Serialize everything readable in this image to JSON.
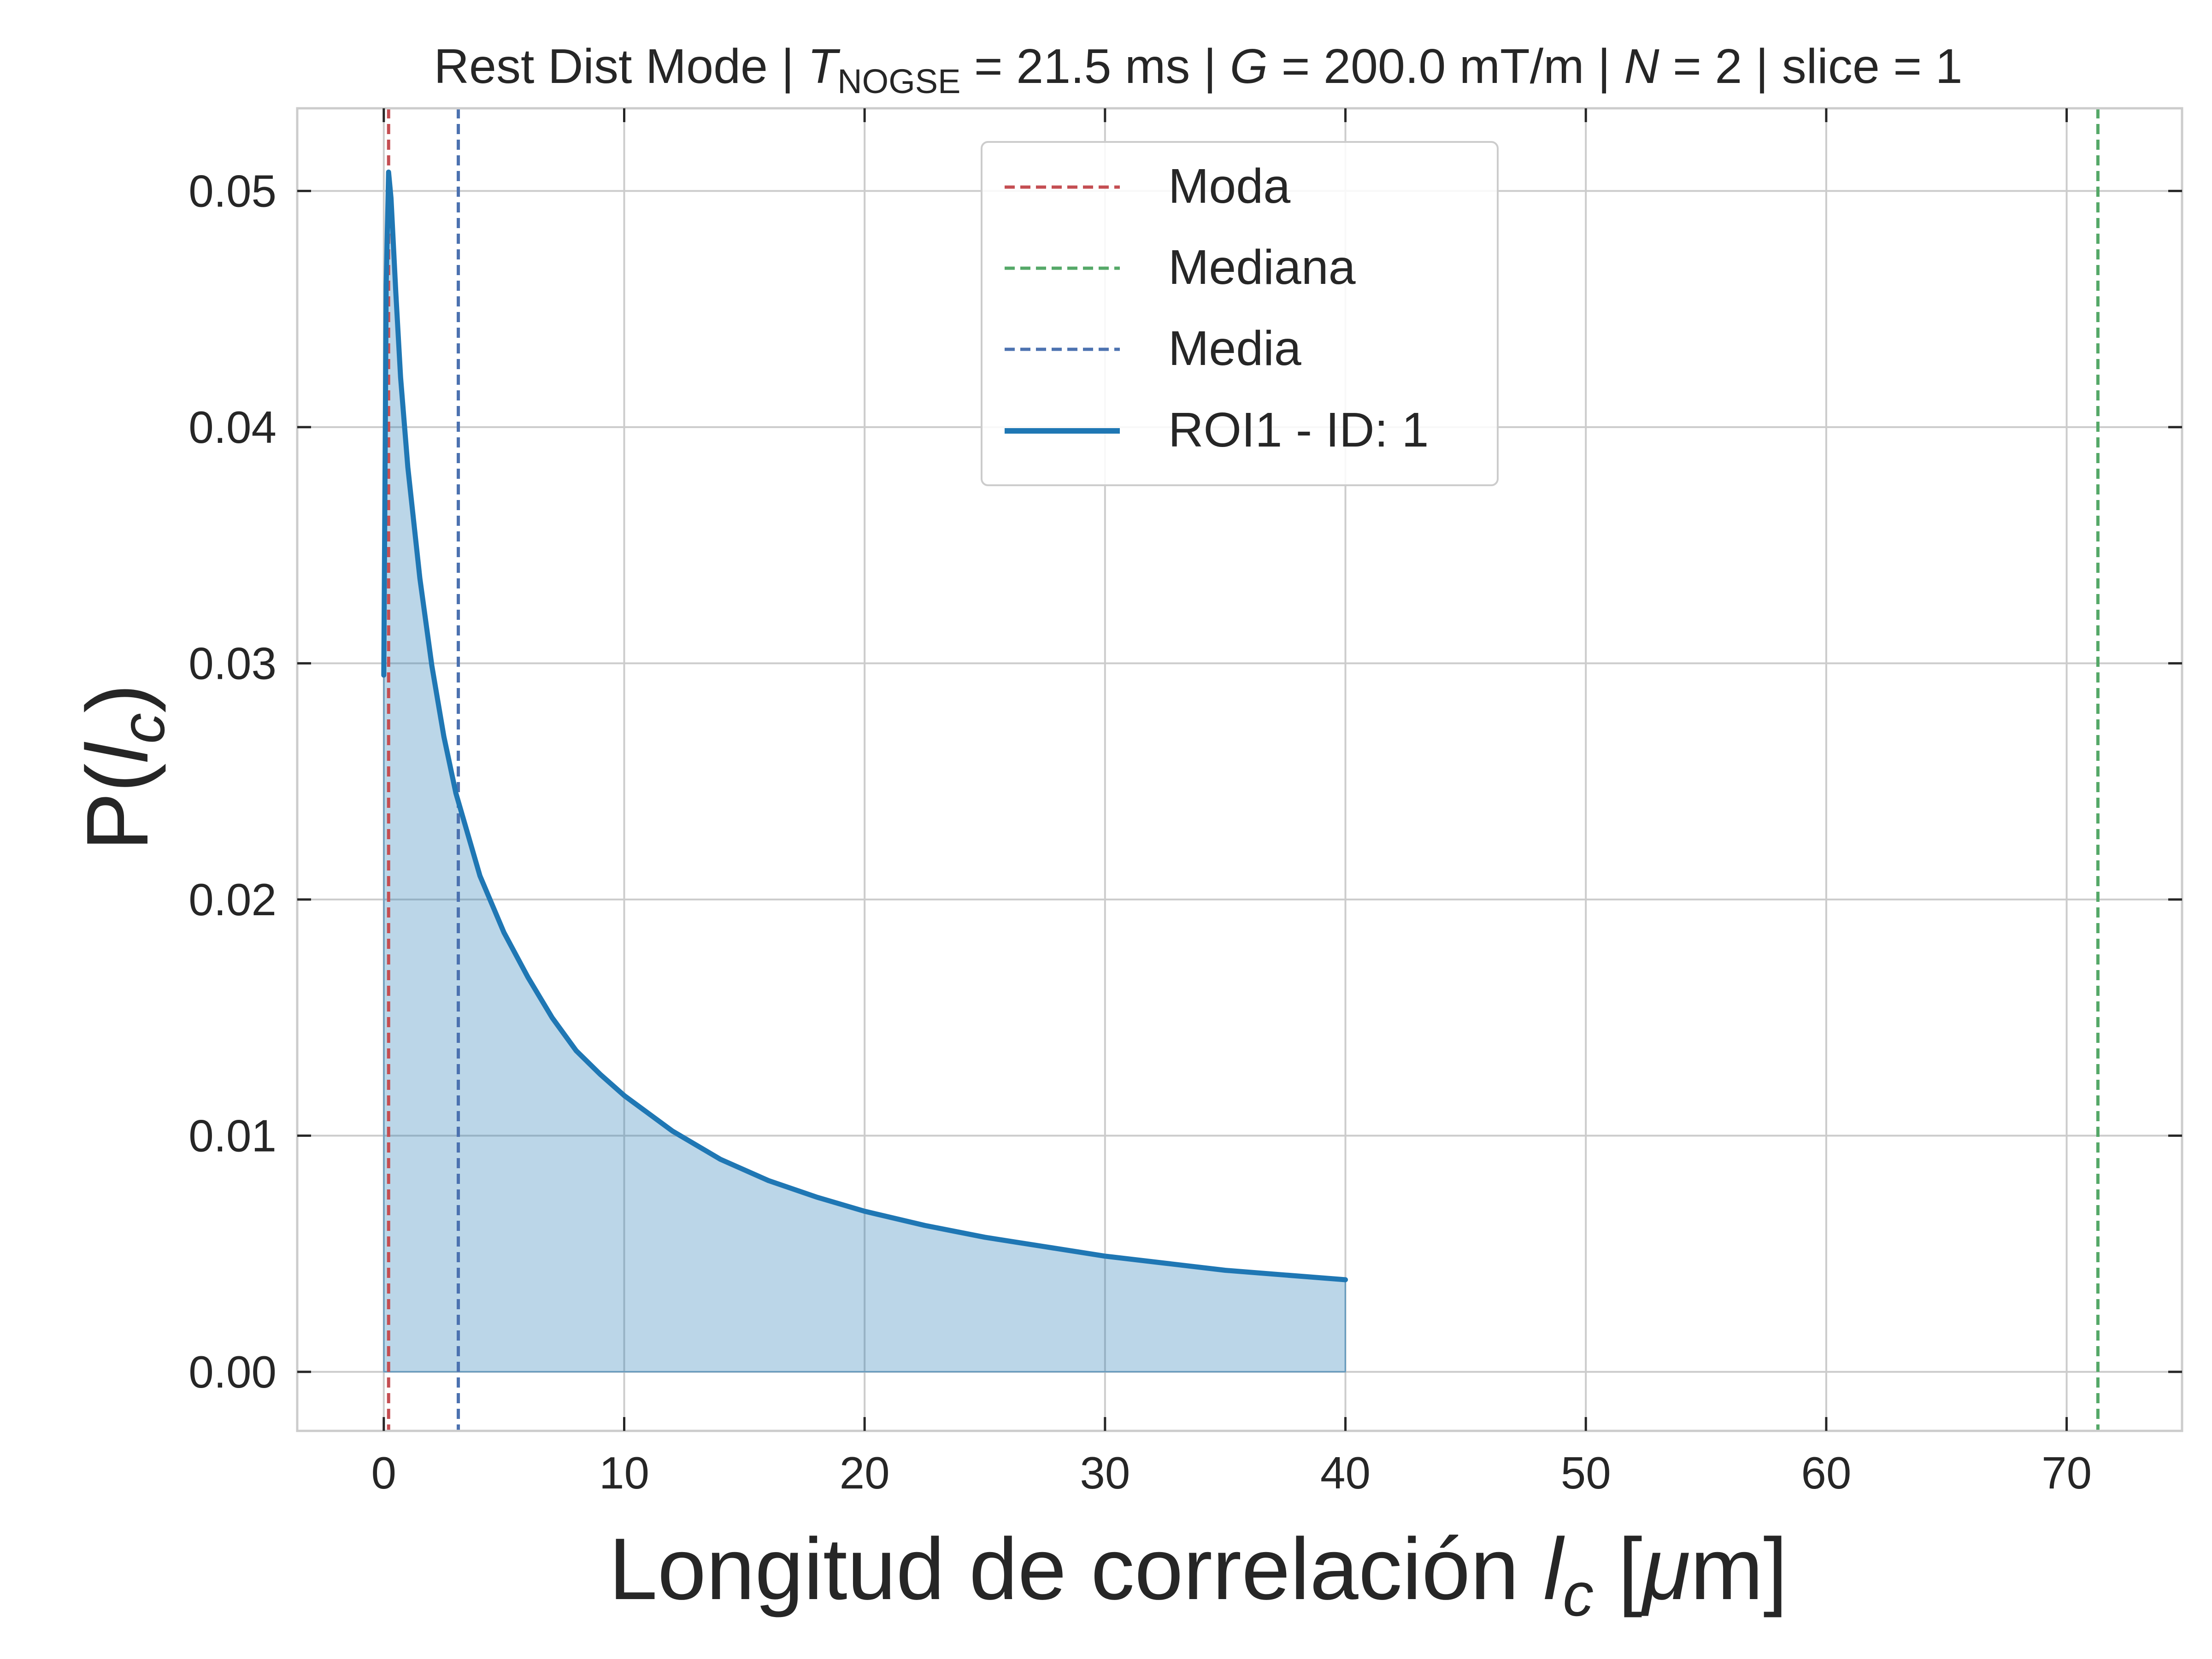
{
  "chart_data": {
    "type": "line",
    "title": {
      "prefix": "Rest Dist Mode | ",
      "t_symbol": "T",
      "t_subscript": "NOGSE",
      "t_value": " = 21.5 ms | ",
      "g_symbol": "G",
      "g_value": " = 200.0 mT/m | ",
      "n_symbol": "N",
      "n_value": " = 2 | slice = 1"
    },
    "xlabel": {
      "text": "Longitud de correlación ",
      "var": "l",
      "var_sub": "c",
      "unit_open": " [",
      "unit_mu": "μ",
      "unit_rest": "m]"
    },
    "ylabel": {
      "text": "P(",
      "var": "l",
      "var_sub": "c",
      "close": ")"
    },
    "xlim": [
      -3.6,
      74.8
    ],
    "ylim": [
      -0.0025,
      0.0535
    ],
    "xticks": [
      0,
      10,
      20,
      30,
      40,
      50,
      60,
      70
    ],
    "xtick_labels": [
      "0",
      "10",
      "20",
      "30",
      "40",
      "50",
      "60",
      "70"
    ],
    "yticks": [
      0.0,
      0.01,
      0.02,
      0.03,
      0.04,
      0.05
    ],
    "ytick_labels": [
      "0.00",
      "0.01",
      "0.02",
      "0.03",
      "0.04",
      "0.05"
    ],
    "grid": true,
    "legend_position": "top-center",
    "series": [
      {
        "name": "ROI1 - ID: 1",
        "color": "#1f77b4",
        "fill_color": "#1f77b4",
        "fill_opacity": 0.3,
        "x": [
          0.0,
          0.1,
          0.2,
          0.3,
          0.5,
          0.7,
          1.0,
          1.5,
          2.0,
          2.5,
          3.0,
          4.0,
          5.0,
          6.0,
          7.0,
          8.0,
          9.0,
          10.0,
          12.0,
          14.0,
          16.0,
          18.0,
          20.0,
          22.5,
          25.0,
          27.5,
          30.0,
          32.5,
          35.0,
          37.5,
          40.0
        ],
        "y": [
          0.0295,
          0.046,
          0.0508,
          0.0497,
          0.0457,
          0.0421,
          0.0383,
          0.0336,
          0.0299,
          0.0269,
          0.0245,
          0.021,
          0.0186,
          0.0167,
          0.015,
          0.0136,
          0.0126,
          0.0117,
          0.0102,
          0.009,
          0.0081,
          0.0074,
          0.0068,
          0.0062,
          0.0057,
          0.0053,
          0.0049,
          0.0046,
          0.0043,
          0.0041,
          0.0039
        ]
      }
    ],
    "vlines": [
      {
        "name": "Moda",
        "x": 0.2,
        "color": "#c44e52"
      },
      {
        "name": "Mediana",
        "x": 71.3,
        "color": "#55a868"
      },
      {
        "name": "Media",
        "x": 3.1,
        "color": "#4c72b0"
      }
    ],
    "legend": [
      {
        "label": "Moda",
        "color": "#c44e52",
        "style": "dashed"
      },
      {
        "label": "Mediana",
        "color": "#55a868",
        "style": "dashed"
      },
      {
        "label": "Media",
        "color": "#4c72b0",
        "style": "dashed"
      },
      {
        "label": "ROI1 - ID: 1",
        "color": "#1f77b4",
        "style": "solid"
      }
    ]
  }
}
